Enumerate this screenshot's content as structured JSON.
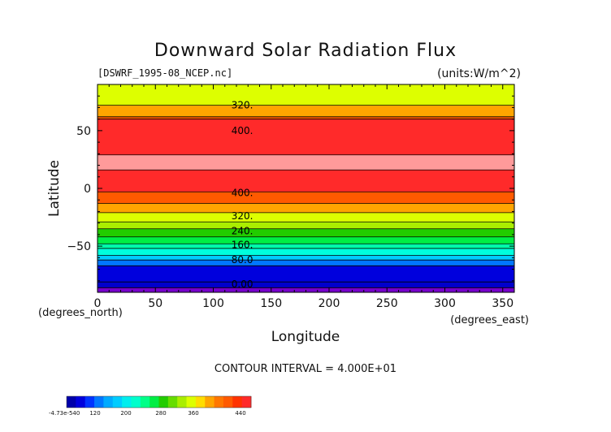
{
  "chart_data": {
    "type": "heatmap",
    "title": "Downward Solar Radiation Flux",
    "file_label": "[DSWRF_1995-08_NCEP.nc]",
    "units_label": "(units:W/m^2)",
    "xlabel": "Longitude",
    "ylabel": "Latitude",
    "x_unit_label": "(degrees_east)",
    "y_unit_label": "(degrees_north)",
    "xlim": [
      0,
      360
    ],
    "ylim": [
      -90,
      90
    ],
    "x_ticks": [
      0,
      50,
      100,
      150,
      200,
      250,
      300,
      350
    ],
    "y_ticks": [
      -50,
      0,
      50
    ],
    "contour_interval_text": "CONTOUR INTERVAL = 4.000E+01",
    "contour_labels": [
      {
        "text": "320.",
        "lon": 125,
        "lat": 72
      },
      {
        "text": "400.",
        "lon": 125,
        "lat": 50
      },
      {
        "text": "400.",
        "lon": 125,
        "lat": -4
      },
      {
        "text": "320.",
        "lon": 125,
        "lat": -24
      },
      {
        "text": "240.",
        "lon": 125,
        "lat": -37
      },
      {
        "text": "160.",
        "lon": 125,
        "lat": -49
      },
      {
        "text": "80.0",
        "lon": 125,
        "lat": -62
      },
      {
        "text": "0.00",
        "lon": 125,
        "lat": -83
      }
    ],
    "bands": [
      {
        "lat_min": 72,
        "lat_max": 90,
        "color": "#ddff00"
      },
      {
        "lat_min": 62,
        "lat_max": 72,
        "color": "#ffa500"
      },
      {
        "lat_min": 60,
        "lat_max": 62,
        "color": "#ff5a00"
      },
      {
        "lat_min": 29,
        "lat_max": 60,
        "color": "#ff2a2a"
      },
      {
        "lat_min": 16,
        "lat_max": 29,
        "color": "#ff9a9a"
      },
      {
        "lat_min": -3,
        "lat_max": 16,
        "color": "#ff2a2a"
      },
      {
        "lat_min": -13,
        "lat_max": -3,
        "color": "#ff5a00"
      },
      {
        "lat_min": -21,
        "lat_max": -13,
        "color": "#ffa500"
      },
      {
        "lat_min": -29,
        "lat_max": -21,
        "color": "#ddff00"
      },
      {
        "lat_min": -35,
        "lat_max": -29,
        "color": "#aaee00"
      },
      {
        "lat_min": -42,
        "lat_max": -35,
        "color": "#22cc00"
      },
      {
        "lat_min": -48,
        "lat_max": -42,
        "color": "#00ee44"
      },
      {
        "lat_min": -52,
        "lat_max": -48,
        "color": "#00ffaa"
      },
      {
        "lat_min": -58,
        "lat_max": -52,
        "color": "#00ffdd"
      },
      {
        "lat_min": -62,
        "lat_max": -58,
        "color": "#00ccff"
      },
      {
        "lat_min": -67,
        "lat_max": -62,
        "color": "#0077ff"
      },
      {
        "lat_min": -81,
        "lat_max": -67,
        "color": "#0000dd"
      },
      {
        "lat_min": -86,
        "lat_max": -81,
        "color": "#0000cc"
      },
      {
        "lat_min": -90,
        "lat_max": -86,
        "color": "#7700cc"
      }
    ],
    "colorbar": {
      "tick_labels": [
        "-4.73e-540",
        "120",
        "200",
        "280",
        "360",
        "440"
      ],
      "colors": [
        "#0000aa",
        "#0000dd",
        "#0033ff",
        "#0077ff",
        "#00aaff",
        "#00ccff",
        "#00eeee",
        "#00ffcc",
        "#00ff88",
        "#00ee44",
        "#22cc00",
        "#66dd00",
        "#aaee00",
        "#ddff00",
        "#ffdd00",
        "#ffa500",
        "#ff7700",
        "#ff5a00",
        "#ff3300",
        "#ff2a2a"
      ]
    }
  }
}
